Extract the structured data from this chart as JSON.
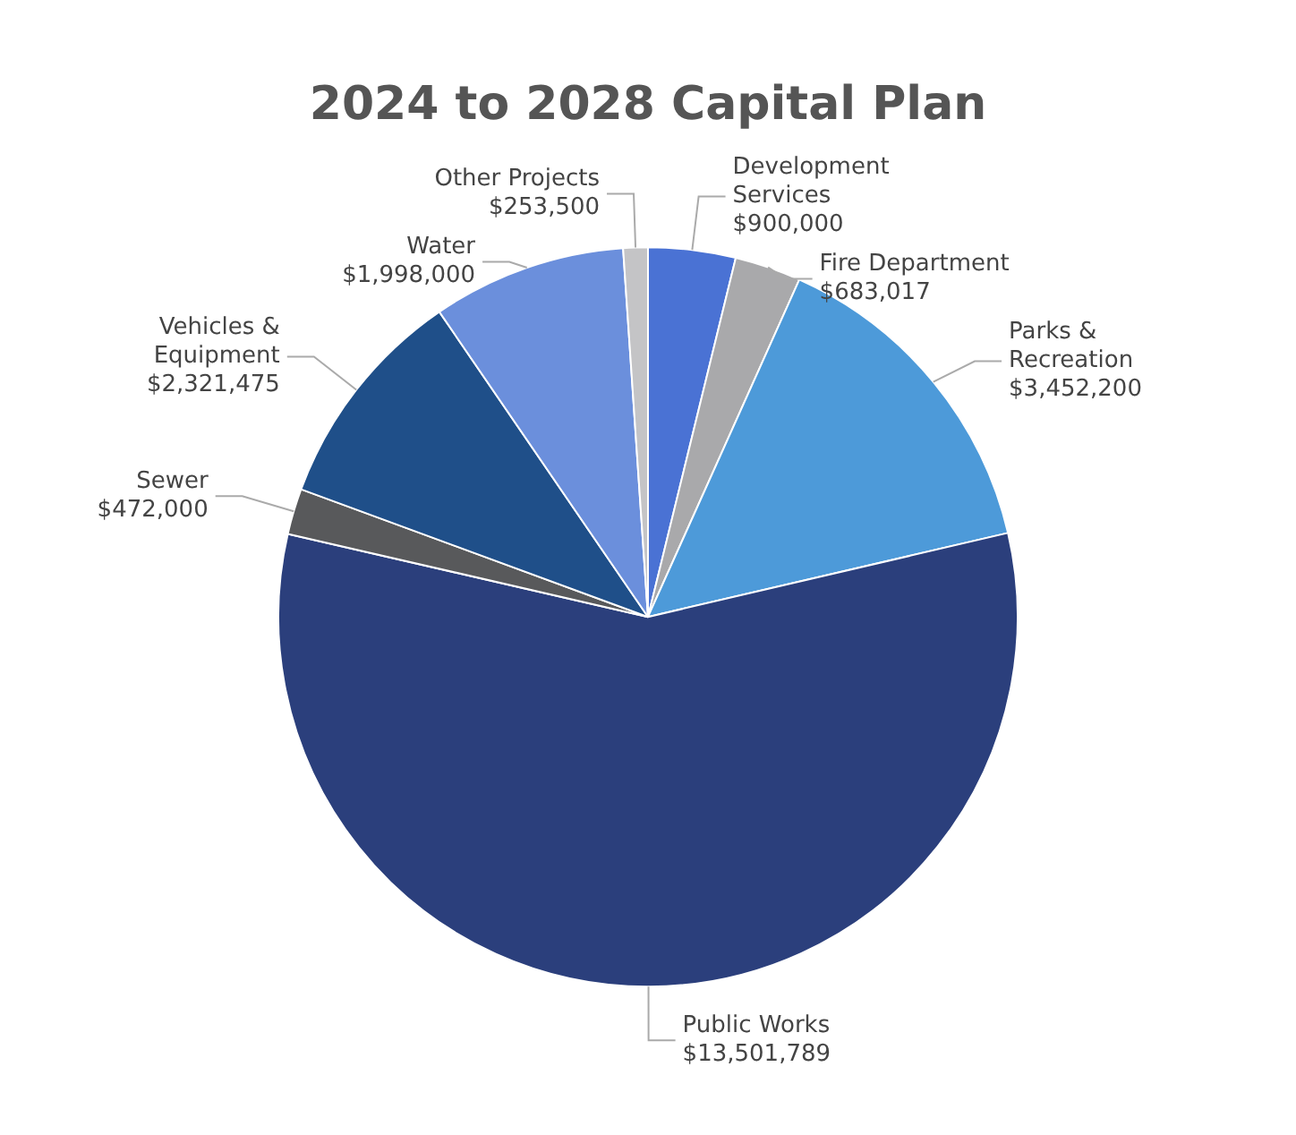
{
  "chart_data": {
    "type": "pie",
    "title": "2024 to 2028 Capital Plan",
    "categories": [
      "Development Services",
      "Fire Department",
      "Parks & Recreation",
      "Public Works",
      "Sewer",
      "Vehicles & Equipment",
      "Water",
      "Other Projects"
    ],
    "values": [
      900000,
      683017,
      3452200,
      13501789,
      472000,
      2321475,
      1998000,
      253500
    ],
    "value_labels": [
      "$900,000",
      "$683,017",
      "$3,452,200",
      "$13,501,789",
      "$472,000",
      "$2,321,475",
      "$1,998,000",
      "$253,500"
    ],
    "colors": [
      "#4a72d4",
      "#a9a9ab",
      "#4d9ad9",
      "#2b3f7c",
      "#58595b",
      "#1f4f89",
      "#6b8fdc",
      "#c4c4c6"
    ],
    "legend": false
  }
}
